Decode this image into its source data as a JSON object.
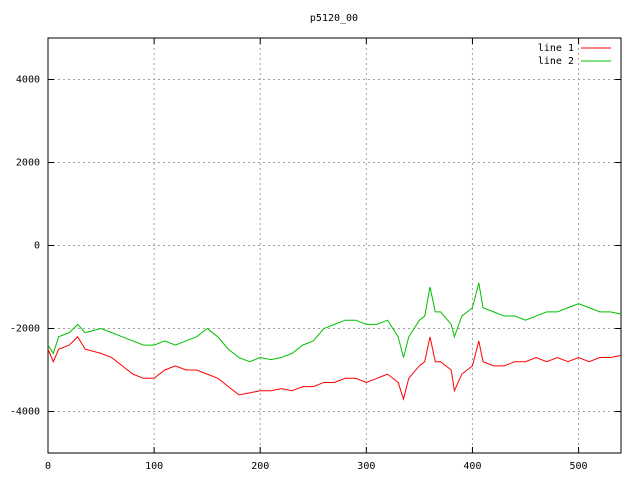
{
  "chart_data": {
    "type": "line",
    "title": "p5120_00",
    "x": [
      0,
      5,
      10,
      20,
      28,
      35,
      50,
      60,
      70,
      80,
      90,
      100,
      110,
      120,
      130,
      140,
      150,
      160,
      170,
      180,
      190,
      200,
      210,
      220,
      230,
      240,
      250,
      260,
      270,
      280,
      290,
      300,
      310,
      320,
      330,
      335,
      340,
      350,
      355,
      360,
      365,
      370,
      380,
      383,
      390,
      400,
      406,
      410,
      420,
      430,
      440,
      450,
      460,
      470,
      480,
      490,
      500,
      510,
      520,
      530,
      540
    ],
    "series": [
      {
        "name": "line 1",
        "color": "#ff0000",
        "values": [
          -2500,
          -2800,
          -2500,
          -2400,
          -2200,
          -2500,
          -2600,
          -2700,
          -2900,
          -3100,
          -3200,
          -3200,
          -3000,
          -2900,
          -3000,
          -3000,
          -3100,
          -3200,
          -3400,
          -3600,
          -3550,
          -3500,
          -3500,
          -3450,
          -3500,
          -3400,
          -3400,
          -3300,
          -3300,
          -3200,
          -3200,
          -3300,
          -3200,
          -3100,
          -3300,
          -3700,
          -3200,
          -2900,
          -2800,
          -2200,
          -2800,
          -2800,
          -3000,
          -3500,
          -3100,
          -2900,
          -2300,
          -2800,
          -2900,
          -2900,
          -2800,
          -2800,
          -2700,
          -2800,
          -2700,
          -2800,
          -2700,
          -2800,
          -2700,
          -2700,
          -2650
        ]
      },
      {
        "name": "line 2",
        "color": "#00c000",
        "values": [
          -2400,
          -2600,
          -2200,
          -2100,
          -1900,
          -2100,
          -2000,
          -2100,
          -2200,
          -2300,
          -2400,
          -2400,
          -2300,
          -2400,
          -2300,
          -2200,
          -2000,
          -2200,
          -2500,
          -2700,
          -2800,
          -2700,
          -2750,
          -2700,
          -2600,
          -2400,
          -2300,
          -2000,
          -1900,
          -1800,
          -1800,
          -1900,
          -1900,
          -1800,
          -2200,
          -2700,
          -2200,
          -1800,
          -1700,
          -1000,
          -1600,
          -1600,
          -1900,
          -2200,
          -1700,
          -1500,
          -900,
          -1500,
          -1600,
          -1700,
          -1700,
          -1800,
          -1700,
          -1600,
          -1600,
          -1500,
          -1400,
          -1500,
          -1600,
          -1600,
          -1650
        ]
      }
    ],
    "xlim": [
      0,
      540
    ],
    "ylim": [
      -5000,
      5000
    ],
    "xticks": [
      0,
      100,
      200,
      300,
      400,
      500
    ],
    "yticks": [
      -4000,
      -2000,
      0,
      2000,
      4000
    ],
    "grid": true,
    "legend": "top-right"
  }
}
